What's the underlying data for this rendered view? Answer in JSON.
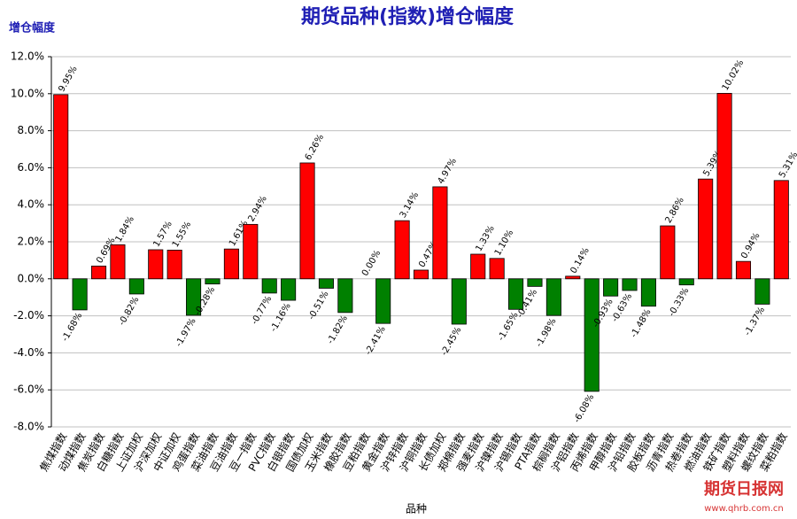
{
  "chart_data": {
    "type": "bar",
    "title": "期货品种(指数)增仓幅度",
    "y_label": "增仓幅度",
    "x_label": "品种",
    "watermark": {
      "name": "期货日报网",
      "url": "www.qhrb.com.cn"
    },
    "categories": [
      "焦煤指数",
      "动煤指数",
      "焦炭指数",
      "白糖指数",
      "上证加权",
      "沪深加权",
      "中证加权",
      "鸡蛋指数",
      "菜油指数",
      "豆油指数",
      "豆一指数",
      "PVC指数",
      "白银指数",
      "国债加权",
      "玉米指数",
      "橡胶指数",
      "豆粕指数",
      "黄金指数",
      "沪锌指数",
      "沪铜指数",
      "长债加权",
      "郑棉指数",
      "强麦指数",
      "沪镍指数",
      "沪锡指数",
      "PTA指数",
      "棕榈指数",
      "沪铝指数",
      "丙烯指数",
      "甲醇指数",
      "沪铅指数",
      "胶板指数",
      "沥青指数",
      "热卷指数",
      "燃油指数",
      "铁矿指数",
      "塑料指数",
      "螺纹指数",
      "菜粕指数"
    ],
    "values": [
      9.95,
      -1.68,
      0.69,
      1.84,
      -0.82,
      1.57,
      1.55,
      -1.97,
      -0.28,
      1.61,
      2.94,
      -0.77,
      -1.16,
      6.26,
      -0.51,
      -1.82,
      0.0,
      -2.41,
      3.14,
      0.47,
      4.97,
      -2.45,
      1.33,
      1.1,
      -1.65,
      -0.41,
      -1.98,
      0.14,
      -6.08,
      -0.93,
      -0.63,
      -1.48,
      2.86,
      -0.33,
      5.39,
      10.02,
      0.94,
      -1.37,
      5.31
    ],
    "value_labels": [
      "9.95%",
      "-1.68%",
      "0.69%",
      "1.84%",
      "-0.82%",
      "1.57%",
      "1.55%",
      "-1.97%",
      "-0.28%",
      "1.61%",
      "2.94%",
      "-0.77%",
      "-1.16%",
      "6.26%",
      "-0.51%",
      "-1.82%",
      "0.00%",
      "-2.41%",
      "3.14%",
      "0.47%",
      "4.97%",
      "-2.45%",
      "1.33%",
      "1.10%",
      "-1.65%",
      "-0.41%",
      "-1.98%",
      "0.14%",
      "-6.08%",
      "-0.93%",
      "-0.63%",
      "-1.48%",
      "2.86%",
      "-0.33%",
      "5.39%",
      "10.02%",
      "0.94%",
      "-1.37%",
      "5.31%"
    ],
    "positive_color": "#ff0000",
    "negative_color": "#008000",
    "ylim": [
      -8,
      12
    ],
    "yticks": [
      {
        "value": -8,
        "label": "-8.0%"
      },
      {
        "value": -6,
        "label": "-6.0%"
      },
      {
        "value": -4,
        "label": "-4.0%"
      },
      {
        "value": -2,
        "label": "-2.0%"
      },
      {
        "value": 0,
        "label": "0.0%"
      },
      {
        "value": 2,
        "label": "2.0%"
      },
      {
        "value": 4,
        "label": "4.0%"
      },
      {
        "value": 6,
        "label": "6.0%"
      },
      {
        "value": 8,
        "label": "8.0%"
      },
      {
        "value": 10,
        "label": "10.0%"
      },
      {
        "value": 12,
        "label": "12.0%"
      }
    ],
    "grid": true
  }
}
